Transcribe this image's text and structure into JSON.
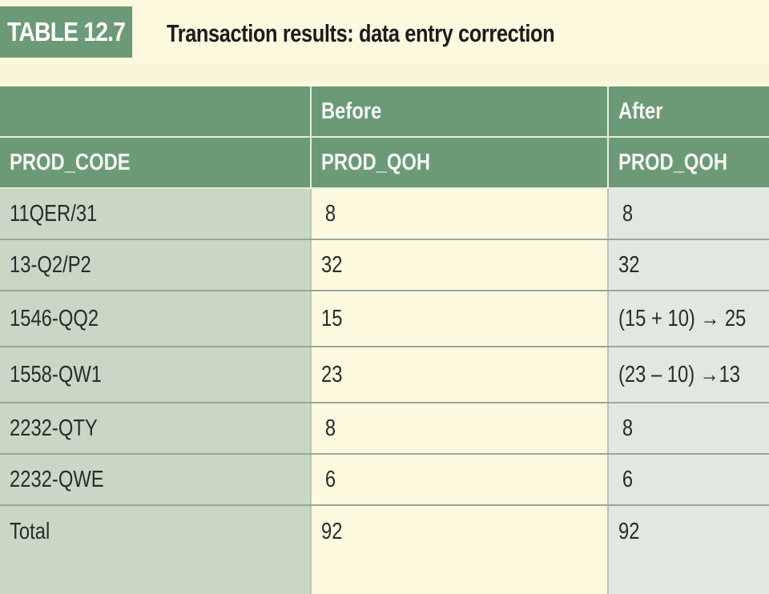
{
  "table_label": "TABLE 12.7",
  "title": "Transaction results: data entry correction",
  "header_top": [
    "",
    "Before",
    "After"
  ],
  "header_bottom": [
    "PROD_CODE",
    "PROD_QOH",
    "PROD_QOH"
  ],
  "rows": [
    {
      "code": "11QER/31",
      "before": "8",
      "after": "8"
    },
    {
      "code": "13-Q2/P2",
      "before": "32",
      "after": "32"
    },
    {
      "code": "1546-QQ2",
      "before": "15",
      "after": "(15 + 10) → 25"
    },
    {
      "code": "1558-QW1",
      "before": "23",
      "after": "(23 – 10) →13"
    },
    {
      "code": "2232-QTY",
      "before": "8",
      "after": "8"
    },
    {
      "code": "2232-QWE",
      "before": "6",
      "after": "6"
    },
    {
      "code": "Total",
      "before": "92",
      "after": "92"
    }
  ]
}
